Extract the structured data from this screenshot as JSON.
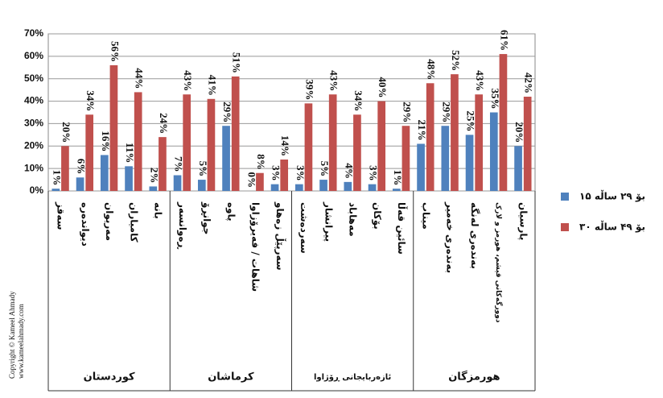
{
  "chart_data": {
    "type": "bar",
    "groups": [
      {
        "name": "کوردستان",
        "categories": [
          "سەقز",
          "دیواندەرە",
          "مەریوان",
          "کامیاران",
          "بانە"
        ]
      },
      {
        "name": "کرماشان",
        "categories": [
          "ڕەوانسەر",
          "جوانڕۆ",
          "پاوە",
          "شاهات / فەیرۆزاوا",
          "سەرپێڵ زەهاو"
        ]
      },
      {
        "name": "ئازەربایجانی ڕۆژاوا",
        "categories": [
          "سەردەشت",
          "پیرانشار",
          "مەهاباد",
          "بۆکان",
          "سائین قەڵا"
        ]
      },
      {
        "name": "هورمزگان",
        "categories": [
          "میناب",
          "بەندەری خەمیر",
          "بەندەری لەنگە",
          "دوورگەکانی قیشم، هورمز و لارک",
          "پارسیان"
        ]
      }
    ],
    "series": [
      {
        "name": "۱۵ بۆ ۲۹ ساڵە",
        "color": "#4f81bd",
        "values": [
          1,
          6,
          16,
          11,
          2,
          7,
          5,
          29,
          0,
          3,
          3,
          5,
          4,
          3,
          1,
          21,
          29,
          25,
          35,
          20
        ],
        "value_labels": [
          "1%",
          "6%",
          "16%",
          "11%",
          "2%",
          "7%",
          "5%",
          "29%",
          "0%",
          "3%",
          "3%",
          "5%",
          "4%",
          "3%",
          "1%",
          "21%",
          "29%",
          "25%",
          "35%",
          "20%"
        ]
      },
      {
        "name": "۳۰ بۆ ۴۹ ساڵە",
        "color": "#c0504d",
        "values": [
          20,
          34,
          56,
          44,
          24,
          43,
          41,
          51,
          8,
          14,
          39,
          43,
          34,
          40,
          29,
          48,
          52,
          43,
          61,
          42
        ],
        "value_labels": [
          "20%",
          "34%",
          "56%",
          "44%",
          "24%",
          "43%",
          "41%",
          "51%",
          "8%",
          "14%",
          "39%",
          "43%",
          "34%",
          "40%",
          "29%",
          "48%",
          "52%",
          "43%",
          "61%",
          "42%"
        ]
      }
    ],
    "ylim": [
      0,
      70
    ],
    "yticks": [
      {
        "value": 0,
        "label": "0%"
      },
      {
        "value": 10,
        "label": "10%"
      },
      {
        "value": 20,
        "label": "20%"
      },
      {
        "value": 30,
        "label": "30%"
      },
      {
        "value": 40,
        "label": "40%"
      },
      {
        "value": 50,
        "label": "50%"
      },
      {
        "value": 60,
        "label": "60%"
      },
      {
        "value": 70,
        "label": "70%"
      }
    ],
    "grid": true,
    "legend": "right",
    "annotations": [
      "Copyright © Kameel Ahmady",
      "www.kameelahmady.com"
    ]
  }
}
